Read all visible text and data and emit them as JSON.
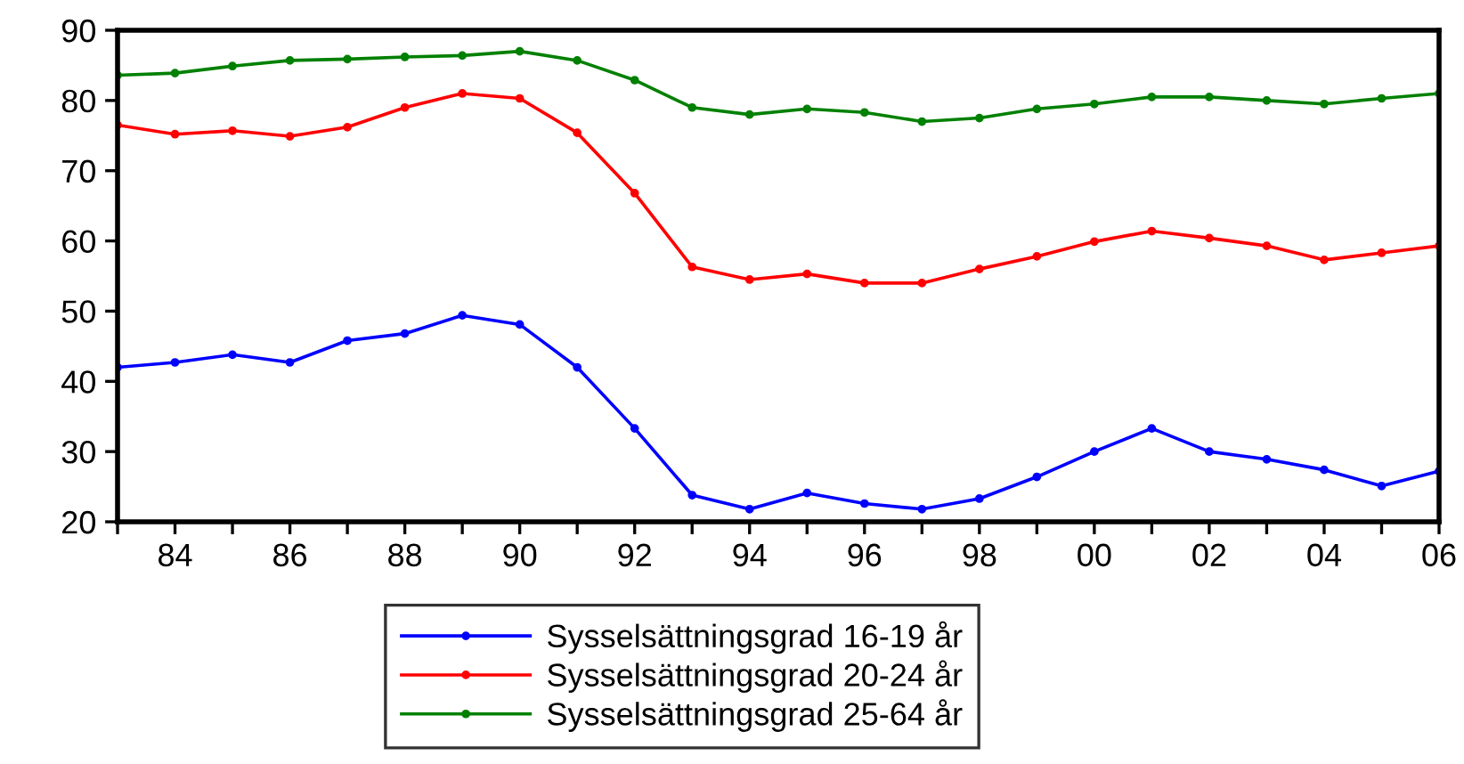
{
  "chart_data": {
    "type": "line",
    "x": [
      1983,
      1984,
      1985,
      1986,
      1987,
      1988,
      1989,
      1990,
      1991,
      1992,
      1993,
      1994,
      1995,
      1996,
      1997,
      1998,
      1999,
      2000,
      2001,
      2002,
      2003,
      2004,
      2005,
      2006
    ],
    "series": [
      {
        "name": "Sysselsättningsgrad 16-19 år",
        "color": "#0000ff",
        "values": [
          42.0,
          42.7,
          43.8,
          42.7,
          45.8,
          46.8,
          49.4,
          48.1,
          42.0,
          33.3,
          23.8,
          21.8,
          24.1,
          22.6,
          21.8,
          23.3,
          26.4,
          30.0,
          33.3,
          30.0,
          28.9,
          27.4,
          25.1,
          27.2
        ]
      },
      {
        "name": "Sysselsättningsgrad 20-24 år",
        "color": "#ff0000",
        "values": [
          76.5,
          75.2,
          75.7,
          74.9,
          76.2,
          79.0,
          81.0,
          80.3,
          75.4,
          66.8,
          56.3,
          54.5,
          55.3,
          54.0,
          54.0,
          56.0,
          57.8,
          59.9,
          61.4,
          60.4,
          59.3,
          57.3,
          58.3,
          59.3
        ]
      },
      {
        "name": "Sysselsättningsgrad 25-64 år",
        "color": "#008000",
        "values": [
          83.6,
          83.9,
          84.9,
          85.7,
          85.9,
          86.2,
          86.4,
          87.0,
          85.7,
          82.9,
          79.0,
          78.0,
          78.8,
          78.3,
          77.0,
          77.5,
          78.8,
          79.5,
          80.5,
          80.5,
          80.0,
          79.5,
          80.3,
          81.0
        ]
      }
    ],
    "xlim": [
      1983,
      2006
    ],
    "xticks": [
      {
        "value": 1983,
        "label": null
      },
      {
        "value": 1984,
        "label": "84"
      },
      {
        "value": 1985,
        "label": null
      },
      {
        "value": 1986,
        "label": "86"
      },
      {
        "value": 1987,
        "label": null
      },
      {
        "value": 1988,
        "label": "88"
      },
      {
        "value": 1989,
        "label": null
      },
      {
        "value": 1990,
        "label": "90"
      },
      {
        "value": 1991,
        "label": null
      },
      {
        "value": 1992,
        "label": "92"
      },
      {
        "value": 1993,
        "label": null
      },
      {
        "value": 1994,
        "label": "94"
      },
      {
        "value": 1995,
        "label": null
      },
      {
        "value": 1996,
        "label": "96"
      },
      {
        "value": 1997,
        "label": null
      },
      {
        "value": 1998,
        "label": "98"
      },
      {
        "value": 1999,
        "label": null
      },
      {
        "value": 2000,
        "label": "00"
      },
      {
        "value": 2001,
        "label": null
      },
      {
        "value": 2002,
        "label": "02"
      },
      {
        "value": 2003,
        "label": null
      },
      {
        "value": 2004,
        "label": "04"
      },
      {
        "value": 2005,
        "label": null
      },
      {
        "value": 2006,
        "label": "06"
      }
    ],
    "ylim": [
      20,
      90
    ],
    "yticks": [
      20,
      30,
      40,
      50,
      60,
      70,
      80,
      90
    ],
    "grid": false,
    "legend": "bottom",
    "marker": "circle",
    "line_style": "solid"
  }
}
